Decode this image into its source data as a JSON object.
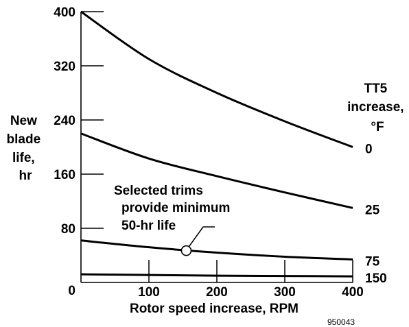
{
  "chart_data": {
    "type": "line",
    "title": "",
    "xlabel": "Rotor speed increase, RPM",
    "ylabel": [
      "New",
      "blade",
      "life,",
      "hr"
    ],
    "xlim": [
      0,
      400
    ],
    "ylim": [
      0,
      400
    ],
    "x_ticks": [
      0,
      100,
      200,
      300,
      400
    ],
    "y_ticks": [
      80,
      160,
      240,
      320,
      400
    ],
    "grid": false,
    "legend": {
      "title": [
        "TT5",
        "increase,",
        "°F"
      ],
      "placement": "right"
    },
    "series": [
      {
        "name": "0",
        "x": [
          0,
          100,
          200,
          300,
          400
        ],
        "y": [
          400,
          330,
          280,
          238,
          200
        ]
      },
      {
        "name": "25",
        "x": [
          0,
          100,
          200,
          300,
          400
        ],
        "y": [
          220,
          183,
          157,
          133,
          110
        ]
      },
      {
        "name": "75",
        "x": [
          0,
          100,
          200,
          300,
          400
        ],
        "y": [
          62,
          52,
          44,
          38,
          34
        ]
      },
      {
        "name": "150",
        "x": [
          0,
          100,
          200,
          300,
          400
        ],
        "y": [
          12,
          11,
          10,
          9.5,
          9
        ]
      }
    ],
    "annotation": {
      "text": [
        "Selected trims",
        "provide minimum",
        "50-hr life"
      ],
      "point": {
        "x": 155,
        "y": 47
      }
    },
    "figure_id": "950043"
  }
}
